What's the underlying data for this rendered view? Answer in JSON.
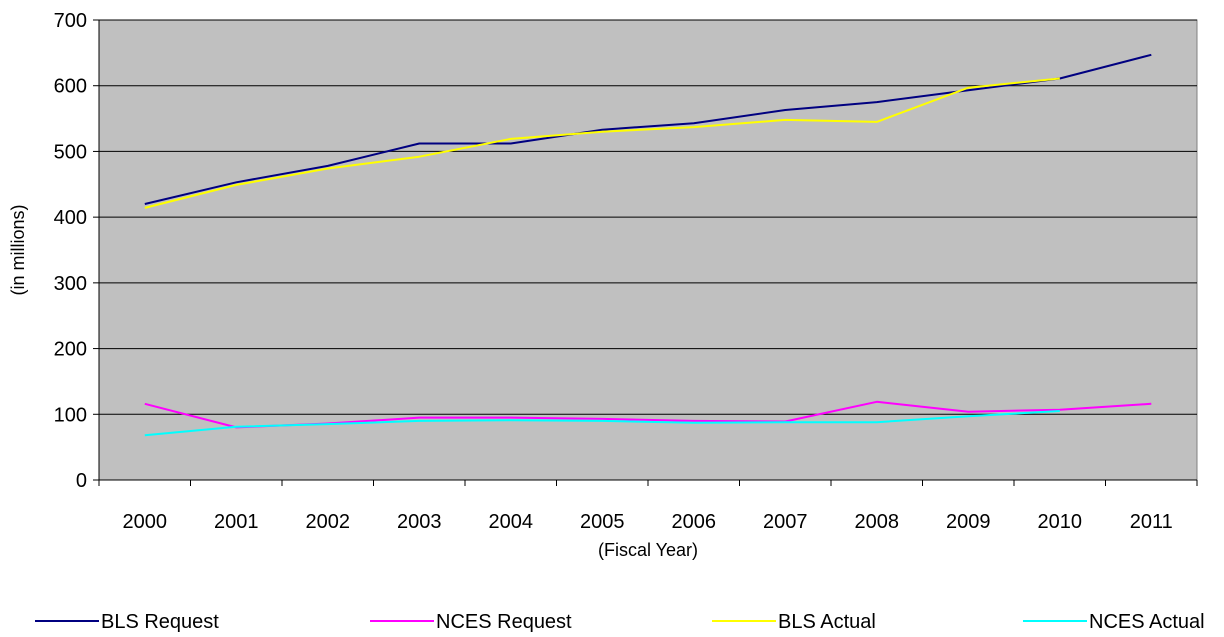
{
  "chart_data": {
    "type": "line",
    "title": "",
    "xlabel": "(Fiscal Year)",
    "ylabel": "(in millions)",
    "ylim": [
      0,
      700
    ],
    "yticks": [
      "0",
      "100",
      "200",
      "300",
      "400",
      "500",
      "600",
      "700"
    ],
    "categories": [
      "2000",
      "2001",
      "2002",
      "2003",
      "2004",
      "2005",
      "2006",
      "2007",
      "2008",
      "2009",
      "2010",
      "2011"
    ],
    "grid": true,
    "legend_position": "bottom",
    "plot_background": "#c0c0c0",
    "series": [
      {
        "name": "BLS Request",
        "color": "#000080",
        "values": [
          420,
          453,
          478,
          512,
          512,
          533,
          543,
          563,
          575,
          593,
          611,
          647
        ]
      },
      {
        "name": "NCES Request",
        "color": "#ff00ff",
        "values": [
          116,
          80,
          86,
          95,
          95,
          93,
          90,
          89,
          119,
          104,
          107,
          116
        ]
      },
      {
        "name": "BLS Actual",
        "color": "#ffff00",
        "values": [
          414,
          449,
          474,
          492,
          519,
          530,
          537,
          548,
          545,
          597,
          611,
          null
        ]
      },
      {
        "name": "NCES Actual",
        "color": "#00ffff",
        "values": [
          68,
          81,
          85,
          90,
          91,
          90,
          87,
          88,
          88,
          97,
          105,
          null
        ]
      }
    ]
  }
}
